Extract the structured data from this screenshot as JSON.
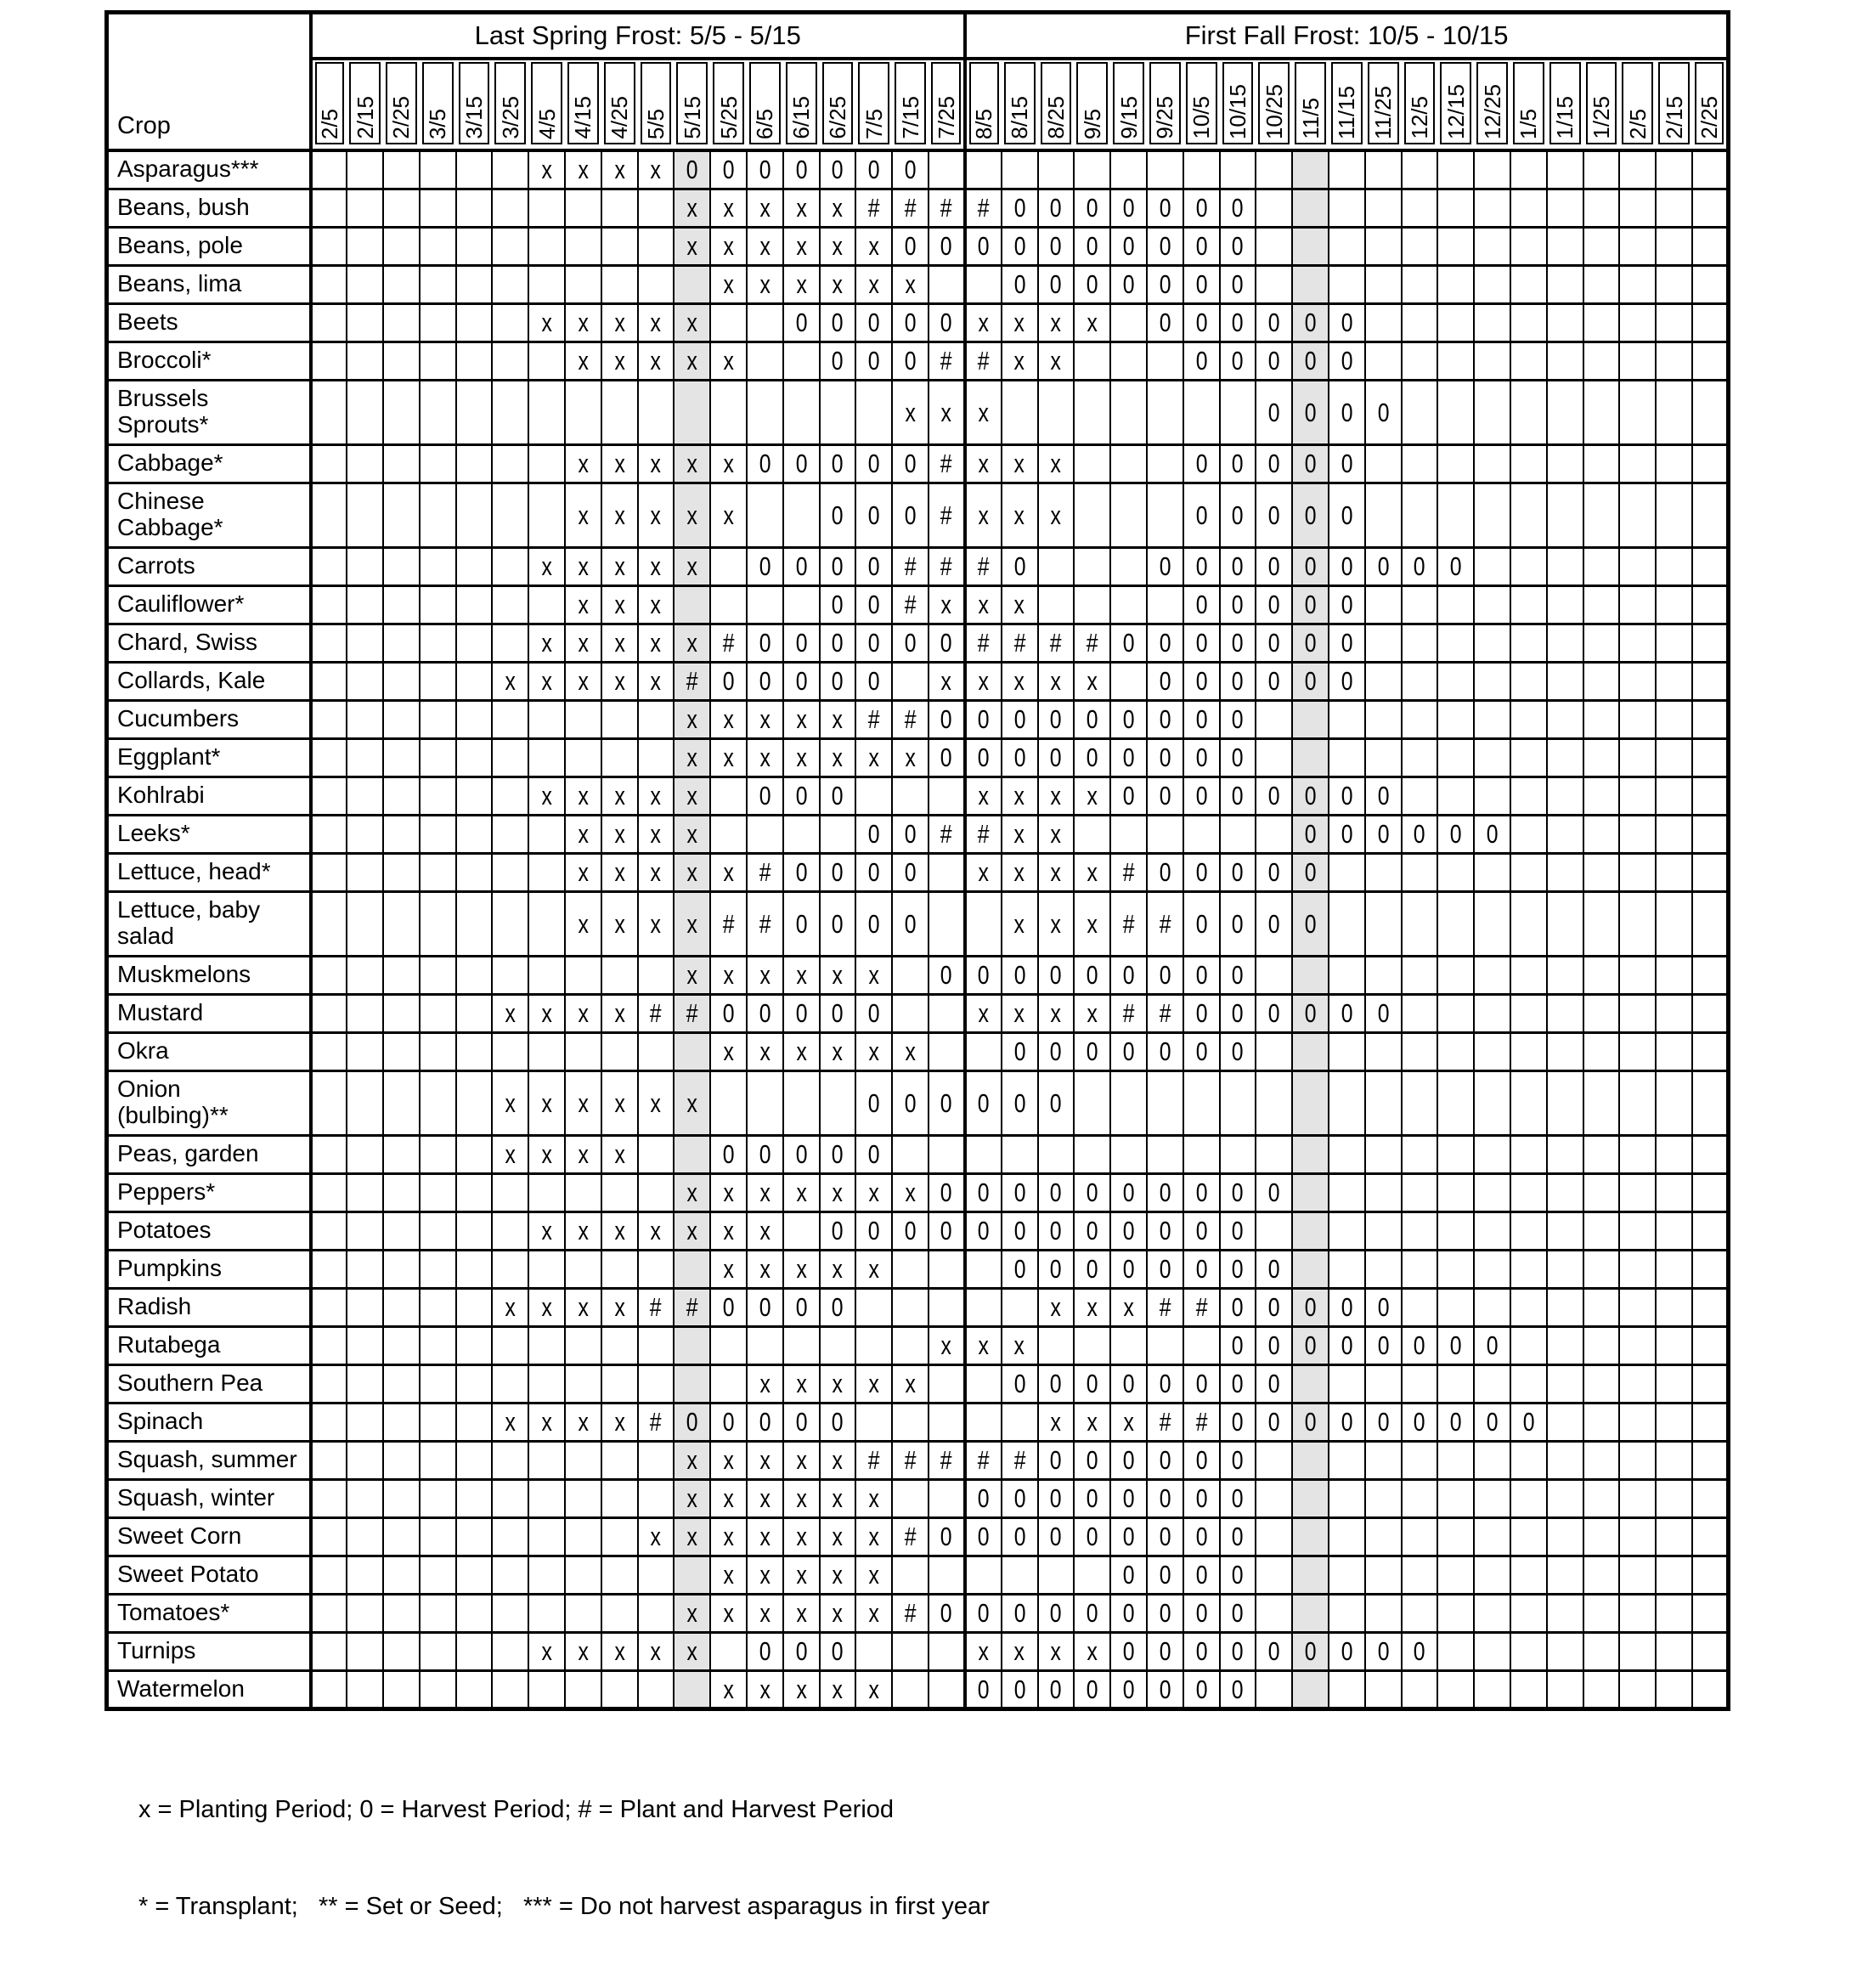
{
  "header": {
    "crop_column_label": "Crop",
    "spring_group": {
      "title": "Last Spring Frost: 5/5 - 5/15",
      "column_span": 18
    },
    "fall_group": {
      "title": "First Fall Frost: 10/5 - 10/15",
      "column_span": 21
    }
  },
  "columns": [
    "2/5",
    "2/15",
    "2/25",
    "3/5",
    "3/15",
    "3/25",
    "4/5",
    "4/15",
    "4/25",
    "5/5",
    "5/15",
    "5/25",
    "6/5",
    "6/15",
    "6/25",
    "7/5",
    "7/15",
    "7/25",
    "8/5",
    "8/15",
    "8/25",
    "9/5",
    "9/15",
    "9/25",
    "10/5",
    "10/15",
    "10/25",
    "11/5",
    "11/15",
    "11/25",
    "12/5",
    "12/15",
    "12/25",
    "1/5",
    "1/15",
    "1/25",
    "2/5",
    "2/15",
    "2/25"
  ],
  "shaded_column_indexes": [
    10,
    27
  ],
  "fall_start_index": 18,
  "styles": {
    "shaded_color": "#e4e4e4",
    "line_color": "#000000"
  },
  "mark_meanings": {
    "x": "Planting Period",
    "0": "Harvest Period",
    "#": "Plant and Harvest Period"
  },
  "rows": [
    {
      "crop": "Asparagus***",
      "marks": "......xxxx0000000......................"
    },
    {
      "crop": "Beans, bush",
      "marks": "..........xxxxx####0000000............."
    },
    {
      "crop": "Beans, pole",
      "marks": "..........xxxxxx0000000000............."
    },
    {
      "crop": "Beans, lima",
      "marks": "...........xxxxxx..0000000............."
    },
    {
      "crop": "Beets",
      "marks": "......xxxxx..00000xxxx.000000.........."
    },
    {
      "crop": "Broccoli*",
      "marks": ".......xxxxx..000##xx...00000.........."
    },
    {
      "crop": "Brussels\nSprouts*",
      "marks": "................xxx.......0000.........",
      "tall": true
    },
    {
      "crop": "Cabbage*",
      "marks": ".......xxxxx00000#xxx...00000.........."
    },
    {
      "crop": "Chinese\nCabbage*",
      "marks": ".......xxxxx..000#xxx...00000..........",
      "tall": true
    },
    {
      "crop": "Carrots",
      "marks": "......xxxxx.0000###0...000000000......."
    },
    {
      "crop": "Cauliflower*",
      "marks": ".......xxx....00#xxx....00000.........."
    },
    {
      "crop": "Chard, Swiss",
      "marks": "......xxxxx#000000####0000000.........."
    },
    {
      "crop": "Collards, Kale",
      "marks": ".....xxxxx#00000.xxxxx.000000.........."
    },
    {
      "crop": "Cucumbers",
      "marks": "..........xxxxx##000000000............."
    },
    {
      "crop": "Eggplant*",
      "marks": "..........xxxxxxx000000000............."
    },
    {
      "crop": "Kohlrabi",
      "marks": "......xxxxx.000...xxxx00000000........."
    },
    {
      "crop": "Leeks*",
      "marks": ".......xxxx....00##xx......000000......"
    },
    {
      "crop": "Lettuce, head*",
      "marks": ".......xxxxx#0000.xxxx#00000..........."
    },
    {
      "crop": "Lettuce, baby\nsalad",
      "marks": ".......xxxx##0000..xxx##0000...........",
      "tall": true
    },
    {
      "crop": "Muskmelons",
      "marks": "..........xxxxxx.000000000............."
    },
    {
      "crop": "Mustard",
      "marks": ".....xxxx##00000..xxxx##000000........."
    },
    {
      "crop": "Okra",
      "marks": "...........xxxxxx..0000000............."
    },
    {
      "crop": "Onion\n(bulbing)**",
      "marks": ".....xxxxxx....000000..................",
      "tall": true
    },
    {
      "crop": "Peas, garden",
      "marks": ".....xxxx..00000......................."
    },
    {
      "crop": "Peppers*",
      "marks": "..........xxxxxxx0000000000............"
    },
    {
      "crop": "Potatoes",
      "marks": "......xxxxxxx.000000000000............."
    },
    {
      "crop": "Pumpkins",
      "marks": "...........xxxxx...00000000............"
    },
    {
      "crop": "Radish",
      "marks": ".....xxxx##0000.....xxx##00000........."
    },
    {
      "crop": "Rutabega",
      "marks": ".................xxx.....00000000......"
    },
    {
      "crop": "Southern Pea",
      "marks": "............xxxxx..00000000............"
    },
    {
      "crop": "Spinach",
      "marks": ".....xxxx#00000.....xxx##000000000....."
    },
    {
      "crop": "Squash, summer",
      "marks": "..........xxxxx#####000000............."
    },
    {
      "crop": "Squash, winter",
      "marks": "..........xxxxxx..00000000............."
    },
    {
      "crop": "Sweet Corn",
      "marks": ".........xxxxxxx#000000000............."
    },
    {
      "crop": "Sweet Potato",
      "marks": "...........xxxxx......0000............."
    },
    {
      "crop": "Tomatoes*",
      "marks": "..........xxxxxx#000000000............."
    },
    {
      "crop": "Turnips",
      "marks": "......xxxxx.000...xxxx000000000........"
    },
    {
      "crop": "Watermelon",
      "marks": "...........xxxxx..00000000............."
    }
  ],
  "legend": {
    "line1": "x = Planting Period; 0 = Harvest Period; # = Plant and Harvest Period",
    "line2": "* = Transplant;   ** = Set or Seed;   *** = Do not harvest asparagus in first year"
  }
}
